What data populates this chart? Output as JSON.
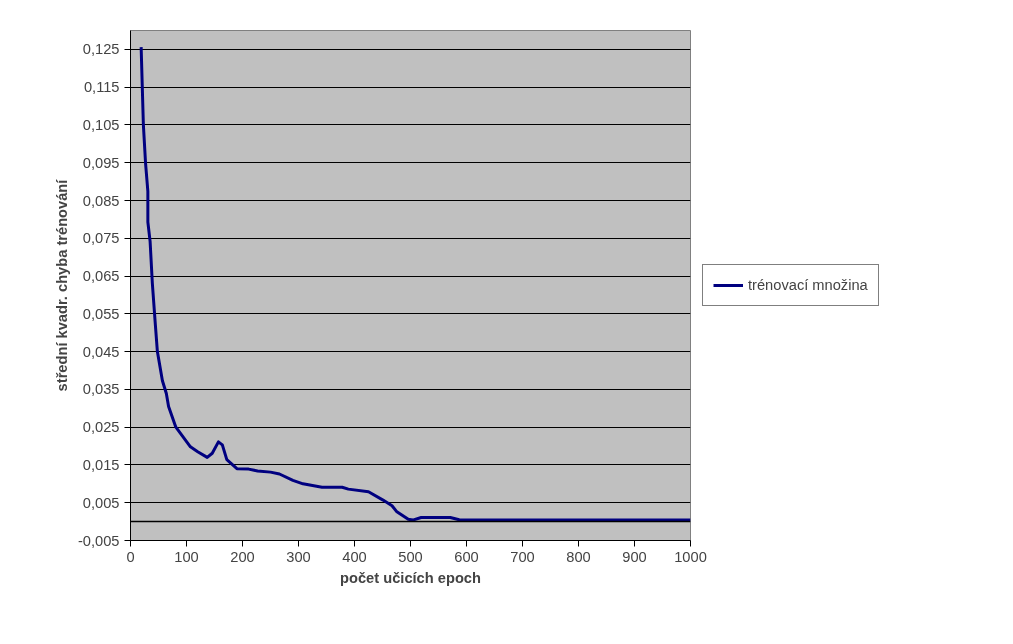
{
  "chart_data": {
    "type": "line",
    "xlabel": "počet učicích epoch",
    "ylabel": "střední kvadr. chyba trénování",
    "xlim": [
      0,
      1000
    ],
    "xticks": [
      0,
      100,
      200,
      300,
      400,
      500,
      600,
      700,
      800,
      900,
      1000
    ],
    "ylim": [
      -0.005,
      0.13
    ],
    "yticks": [
      {
        "value": -0.005,
        "label": "-0,005"
      },
      {
        "value": 0.005,
        "label": "0,005"
      },
      {
        "value": 0.015,
        "label": "0,015"
      },
      {
        "value": 0.025,
        "label": "0,025"
      },
      {
        "value": 0.035,
        "label": "0,035"
      },
      {
        "value": 0.045,
        "label": "0,045"
      },
      {
        "value": 0.055,
        "label": "0,055"
      },
      {
        "value": 0.065,
        "label": "0,065"
      },
      {
        "value": 0.075,
        "label": "0,075"
      },
      {
        "value": 0.085,
        "label": "0,085"
      },
      {
        "value": 0.095,
        "label": "0,095"
      },
      {
        "value": 0.105,
        "label": "0,105"
      },
      {
        "value": 0.115,
        "label": "0,115"
      },
      {
        "value": 0.125,
        "label": "0,125"
      }
    ],
    "grid": "y",
    "legend": "right",
    "marker": "none",
    "line_style": "solid",
    "ref_lines": [
      {
        "axis": "y",
        "value": 0,
        "color": "#000000"
      }
    ],
    "series": [
      {
        "name": "trénovací množina",
        "color": "#000080",
        "x": [
          19,
          23,
          27,
          31,
          31,
          35,
          39,
          44,
          48,
          57,
          64,
          68,
          81,
          107,
          120,
          137,
          146,
          157,
          164,
          172,
          190,
          211,
          227,
          250,
          266,
          290,
          308,
          342,
          378,
          389,
          425,
          451,
          467,
          475,
          496,
          504,
          519,
          571,
          587,
          650,
          800,
          1000
        ],
        "values": [
          0.1256,
          0.105,
          0.0946,
          0.0874,
          0.0793,
          0.0742,
          0.0631,
          0.0529,
          0.045,
          0.0373,
          0.0339,
          0.0305,
          0.025,
          0.0198,
          0.0185,
          0.017,
          0.0181,
          0.0211,
          0.0203,
          0.0164,
          0.014,
          0.0139,
          0.0134,
          0.0131,
          0.0126,
          0.0109,
          0.01,
          0.0091,
          0.0091,
          0.0086,
          0.0079,
          0.0057,
          0.0042,
          0.0027,
          0.0006,
          0.0004,
          0.0011,
          0.0011,
          0.0005,
          0.0004,
          0.0004,
          0.0004
        ]
      }
    ]
  }
}
